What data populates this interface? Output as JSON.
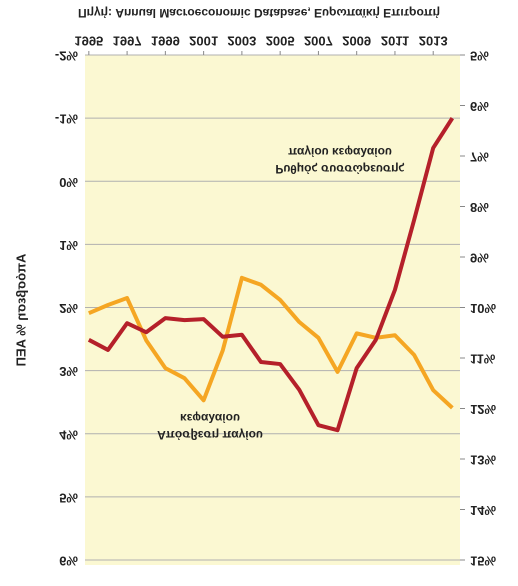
{
  "chart_data": {
    "type": "line",
    "title": "Πηγή: Annual Macroeconomic Database, Ευρωπαϊκή Επιτροπή",
    "y_label": "Απόσβεση % ΑΕΠ",
    "x": [
      1995,
      1996,
      1997,
      1998,
      1999,
      2000,
      2001,
      2002,
      2003,
      2004,
      2005,
      2006,
      2007,
      2008,
      2009,
      2010,
      2011,
      2012,
      2013,
      2014
    ],
    "xlim": [
      1994.8,
      2014.4
    ],
    "xticks": [
      1995,
      1997,
      1999,
      2001,
      2003,
      2005,
      2007,
      2009,
      2011,
      2013
    ],
    "series": [
      {
        "name": "Απόσβεση παγίου κεφαλαίου",
        "color": "#f5a623",
        "axis": "y",
        "values": [
          2.09,
          1.96,
          1.85,
          2.52,
          2.96,
          3.12,
          3.47,
          2.68,
          1.53,
          1.64,
          1.88,
          2.23,
          2.48,
          3.02,
          2.41,
          2.48,
          2.44,
          2.75,
          3.31,
          3.59
        ]
      },
      {
        "name": "Ρυθμός συσσώρευσης παγίου κεφαλαίου",
        "color": "#b5202a",
        "axis": "y2",
        "values": [
          10.64,
          10.84,
          10.31,
          10.49,
          10.21,
          10.25,
          10.23,
          10.58,
          10.54,
          11.08,
          11.12,
          11.63,
          12.33,
          12.43,
          11.2,
          10.64,
          9.65,
          8.27,
          6.84,
          6.25
        ]
      }
    ],
    "annotations": [
      {
        "series": 0,
        "lines": [
          "Απόσβεση παγίου",
          "κεφαλαίου"
        ]
      },
      {
        "series": 1,
        "lines": [
          "Ρυθμός συσσώρευσης",
          "παγίου κεφαλαίου"
        ]
      }
    ],
    "ylim": [
      -2,
      6
    ],
    "yticks": [
      {
        "value": -2,
        "label": "-2%"
      },
      {
        "value": -1,
        "label": "-1%"
      },
      {
        "value": 0,
        "label": "0%"
      },
      {
        "value": 1,
        "label": "1%"
      },
      {
        "value": 2,
        "label": "2%"
      },
      {
        "value": 3,
        "label": "3%"
      },
      {
        "value": 4,
        "label": "4%"
      },
      {
        "value": 5,
        "label": "5%"
      },
      {
        "value": 6,
        "label": "6%"
      }
    ],
    "y2lim": [
      5,
      15
    ],
    "y2ticks": [
      {
        "value": 5,
        "label": "5%"
      },
      {
        "value": 6,
        "label": "6%"
      },
      {
        "value": 7,
        "label": "7%"
      },
      {
        "value": 8,
        "label": "8%"
      },
      {
        "value": 9,
        "label": "9%"
      },
      {
        "value": 10,
        "label": "10%"
      },
      {
        "value": 11,
        "label": "11%"
      },
      {
        "value": 12,
        "label": "12%"
      },
      {
        "value": 13,
        "label": "13%"
      },
      {
        "value": 14,
        "label": "14%"
      },
      {
        "value": 15,
        "label": "15%"
      }
    ],
    "grid": true,
    "flipped_vertically": true
  }
}
